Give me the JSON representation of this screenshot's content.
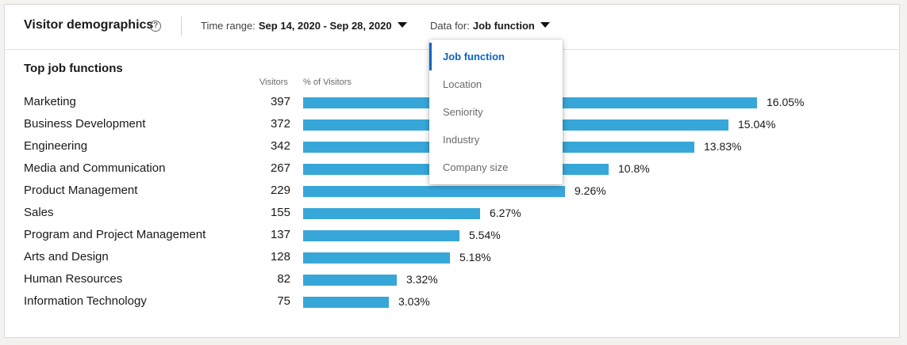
{
  "header": {
    "title": "Visitor demographics",
    "help_icon": "?",
    "time_range_label": "Time range:",
    "time_range_value": "Sep 14, 2020 - Sep 28, 2020",
    "data_for_label": "Data for:",
    "data_for_value": "Job function"
  },
  "section": {
    "title": "Top job functions",
    "col_visitors": "Visitors",
    "col_percent": "% of Visitors"
  },
  "dropdown": {
    "options": [
      "Job function",
      "Location",
      "Seniority",
      "Industry",
      "Company size"
    ],
    "selected_index": 0
  },
  "colors": {
    "bar": "#37a6d8",
    "accent": "#0a66c2"
  },
  "chart_data": {
    "type": "bar",
    "orientation": "horizontal",
    "categories": [
      "Marketing",
      "Business Development",
      "Engineering",
      "Media and Communication",
      "Product Management",
      "Sales",
      "Program and Project Management",
      "Arts and Design",
      "Human Resources",
      "Information Technology"
    ],
    "visitors": [
      397,
      372,
      342,
      267,
      229,
      155,
      137,
      128,
      82,
      75
    ],
    "values": [
      16.05,
      15.04,
      13.83,
      10.8,
      9.26,
      6.27,
      5.54,
      5.18,
      3.32,
      3.03
    ],
    "value_labels": [
      "16.05%",
      "15.04%",
      "13.83%",
      "10.8%",
      "9.26%",
      "6.27%",
      "5.54%",
      "5.18%",
      "3.32%",
      "3.03%"
    ]
  }
}
